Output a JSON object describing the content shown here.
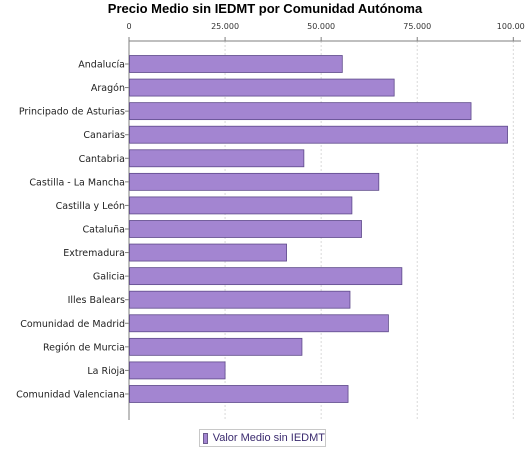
{
  "chart_data": {
    "type": "bar",
    "orientation": "horizontal",
    "title": "Precio Medio sin IEDMT por Comunidad Autónoma",
    "categories": [
      "Andalucía",
      "Aragón",
      "Principado de Asturias",
      "Canarias",
      "Cantabria",
      "Castilla - La Mancha",
      "Castilla y León",
      "Cataluña",
      "Extremadura",
      "Galicia",
      "Illes Balears",
      "Comunidad de Madrid",
      "Región de Murcia",
      "La Rioja",
      "Comunidad Valenciana"
    ],
    "series": [
      {
        "name": "Valor Medio sin IEDMT",
        "values": [
          55500,
          69000,
          89000,
          98500,
          45500,
          65000,
          58000,
          60500,
          41000,
          71000,
          57500,
          67500,
          45000,
          25000,
          57000
        ]
      }
    ],
    "xlim": [
      0,
      102000
    ],
    "x_ticks": [
      0,
      25000,
      50000,
      75000,
      100000
    ],
    "x_tick_labels": [
      "0",
      "25.000",
      "50.000",
      "75.000",
      "100.000"
    ],
    "grid": true,
    "legend_position": "bottom-center",
    "colors": {
      "bar_fill": "#a385d1",
      "bar_stroke": "#5e4a8a",
      "grid": "#d9d9d9",
      "axis": "#7f7f7f",
      "legend_text": "#3a2a6e"
    }
  }
}
